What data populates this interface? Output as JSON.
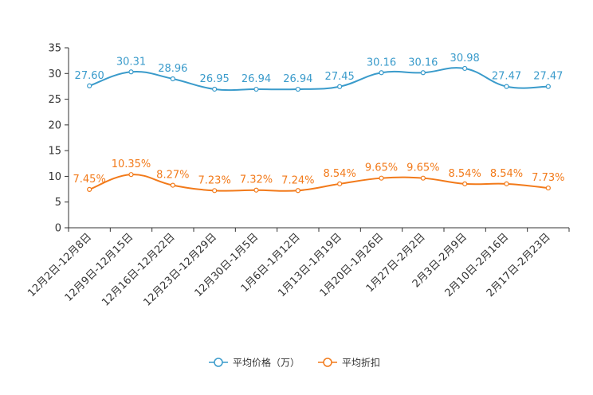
{
  "chart_data": {
    "type": "line",
    "title": "",
    "xlabel": "",
    "ylabel": "",
    "ylim": [
      0,
      35
    ],
    "yticks": [
      0,
      5,
      10,
      15,
      20,
      25,
      30,
      35
    ],
    "grid": false,
    "legend_position": "bottom",
    "categories": [
      "12月2日-12月8日",
      "12月9日-12月15日",
      "12月16日-12月22日",
      "12月23日-12月29日",
      "12月30日-1月5日",
      "1月6日-1月12日",
      "1月13日-1月19日",
      "1月20日-1月26日",
      "1月27日-2月2日",
      "2月3日-2月9日",
      "2月10日-2月16日",
      "2月17日-2月23日"
    ],
    "series": [
      {
        "name": "平均价格（万）",
        "color": "#3A9BCB",
        "values": [
          27.6,
          30.31,
          28.96,
          26.95,
          26.94,
          26.94,
          27.45,
          30.16,
          30.16,
          30.98,
          27.47,
          27.47
        ],
        "labels": [
          "27.60",
          "30.31",
          "28.96",
          "26.95",
          "26.94",
          "26.94",
          "27.45",
          "30.16",
          "30.16",
          "30.98",
          "27.47",
          "27.47"
        ]
      },
      {
        "name": "平均折扣",
        "color": "#F27A1A",
        "values": [
          7.45,
          10.35,
          8.27,
          7.23,
          7.32,
          7.24,
          8.54,
          9.65,
          9.65,
          8.54,
          8.54,
          7.73
        ],
        "labels": [
          "7.45%",
          "10.35%",
          "8.27%",
          "7.23%",
          "7.32%",
          "7.24%",
          "8.54%",
          "9.65%",
          "9.65%",
          "8.54%",
          "8.54%",
          "7.73%"
        ]
      }
    ]
  }
}
